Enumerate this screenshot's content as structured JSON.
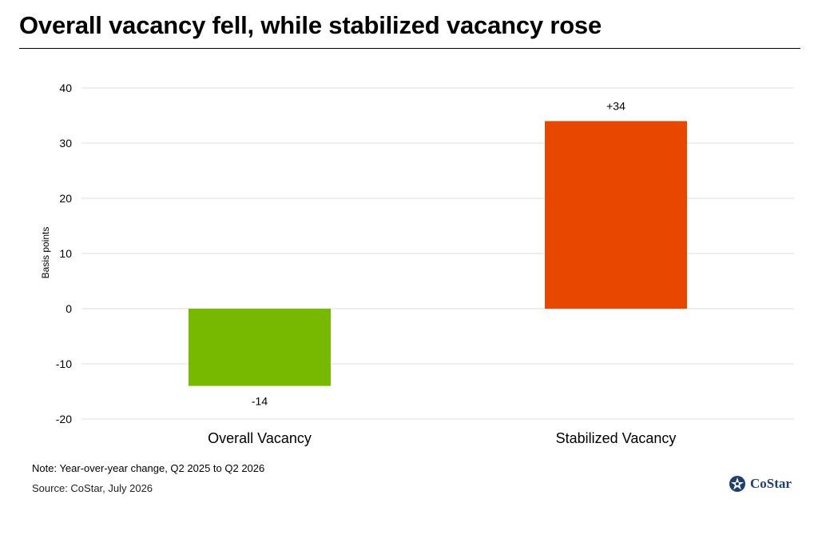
{
  "title": "Overall vacancy fell, while stabilized vacancy rose",
  "note": "Note: Year-over-year change, Q2 2025 to Q2 2026",
  "source": "Source: CoStar, July 2026",
  "brand": {
    "name": "CoStar",
    "icon": "costar-star-icon"
  },
  "chart_data": {
    "type": "bar",
    "categories": [
      "Overall Vacancy",
      "Stabilized Vacancy"
    ],
    "values": [
      -14,
      34
    ],
    "data_labels": [
      "-14",
      "+34"
    ],
    "colors": [
      "#77b900",
      "#e84700"
    ],
    "ylabel": "Basis points",
    "xlabel": "",
    "ylim": [
      -20,
      40
    ],
    "yticks": [
      -20,
      -10,
      0,
      10,
      20,
      30,
      40
    ],
    "grid": true,
    "legend": "none"
  }
}
